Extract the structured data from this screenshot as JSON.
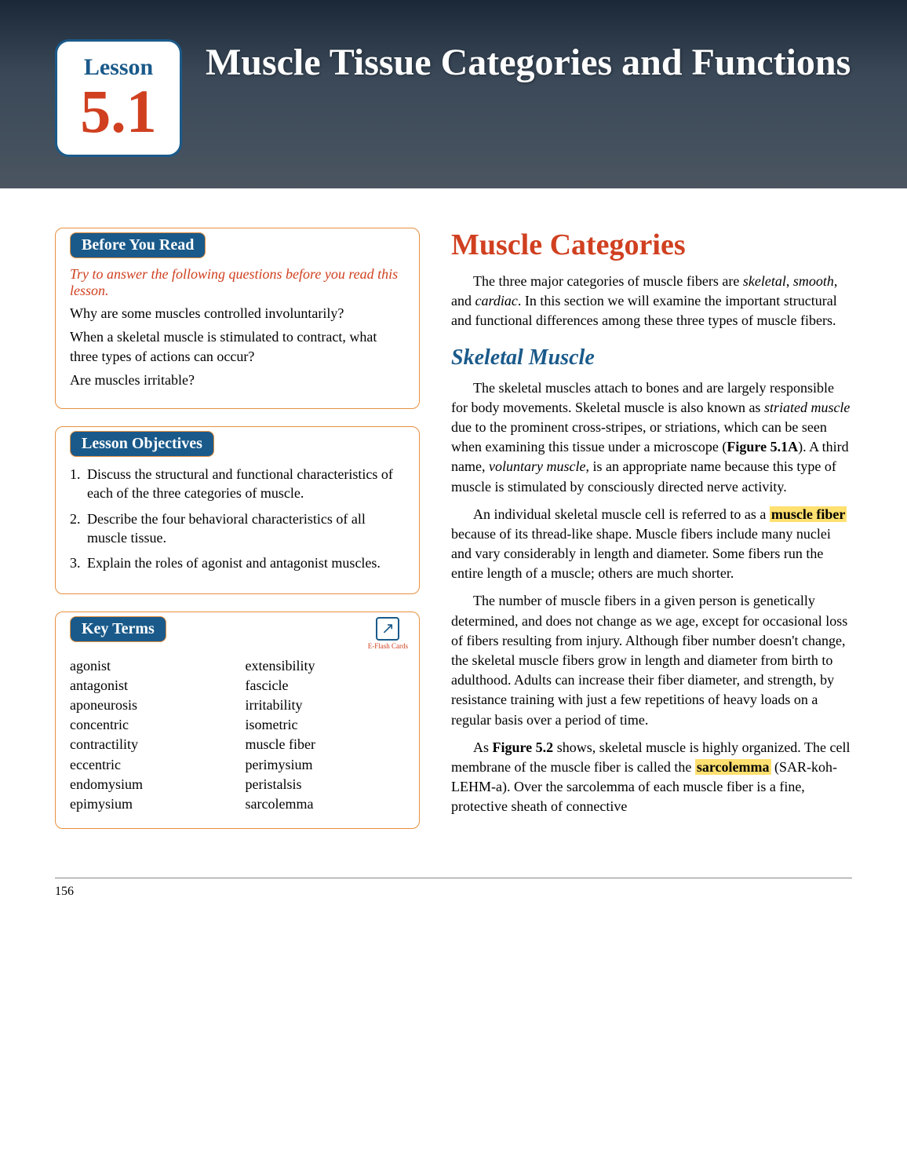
{
  "hero": {
    "lesson_label": "Lesson",
    "lesson_number": "5.1",
    "title": "Muscle Tissue Categories and Functions",
    "badge_border_color": "#1a5a8a",
    "lesson_label_color": "#1a5a8a",
    "lesson_number_color": "#d04020",
    "title_color": "#ffffff",
    "background_gradient": [
      "#1a2838",
      "#4a5560"
    ]
  },
  "before_you_read": {
    "header": "Before You Read",
    "intro": "Try to answer the following questions before you read this lesson.",
    "questions": [
      "Why are some muscles controlled involuntarily?",
      "When a skeletal muscle is stimulated to contract, what three types of actions can occur?",
      "Are muscles irritable?"
    ]
  },
  "objectives": {
    "header": "Lesson Objectives",
    "items": [
      "Discuss the structural and functional characteristics of each of the three categories of muscle.",
      "Describe the four behavioral characteristics of all muscle tissue.",
      "Explain the roles of agonist and antagonist muscles."
    ]
  },
  "key_terms": {
    "header": "Key Terms",
    "eflash_label": "E-Flash Cards",
    "terms_col1": [
      "agonist",
      "antagonist",
      "aponeurosis",
      "concentric",
      "contractility",
      "eccentric",
      "endomysium",
      "epimysium"
    ],
    "terms_col2": [
      "extensibility",
      "fascicle",
      "irritability",
      "isometric",
      "muscle fiber",
      "perimysium",
      "peristalsis",
      "sarcolemma"
    ]
  },
  "main": {
    "section_title": "Muscle Categories",
    "subsection_title": "Skeletal Muscle",
    "highlight1": "muscle fiber",
    "highlight2": "sarcolemma"
  },
  "colors": {
    "box_border": "#e89040",
    "box_header_bg": "#1a5a8a",
    "box_header_text": "#ffffff",
    "accent_red": "#d04020",
    "accent_blue": "#1a5a8a",
    "highlight_bg": "#ffe070"
  },
  "page_number": "156"
}
